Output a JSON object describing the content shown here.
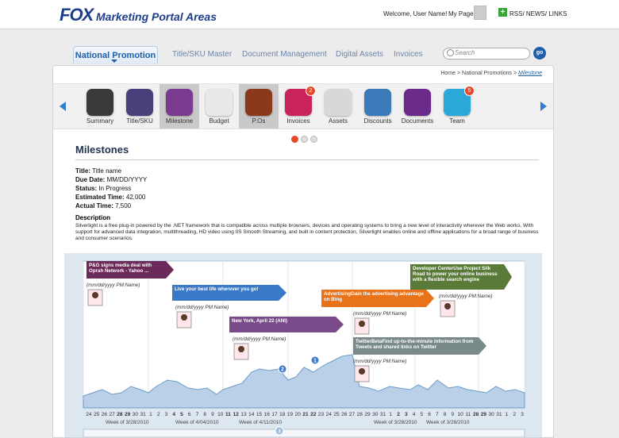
{
  "header": {
    "logo": "FOX",
    "portal_title": "Marketing Portal Areas",
    "welcome": "Welcome, User Name!",
    "my_page": "My Page",
    "rss": "RSS/ NEWS/ LINKS",
    "rss_symbol": "+"
  },
  "nav": {
    "tabs": [
      "National Promotion",
      "Title/SKU Master",
      "Document Management",
      "Digital Assets",
      "Invoices"
    ],
    "search_placeholder": "Search",
    "go": "go"
  },
  "breadcrumb": {
    "path": "Home > National Promotions > ",
    "current": "Milestone"
  },
  "modules": [
    {
      "label": "Summary",
      "color": "#3a3a3a",
      "badge": ""
    },
    {
      "label": "Title/SKU",
      "color": "#4a3f7a",
      "badge": ""
    },
    {
      "label": "Milestone",
      "color": "#7a3a8f",
      "badge": ""
    },
    {
      "label": "Budget",
      "color": "#e8e8e8",
      "badge": ""
    },
    {
      "label": "P.Os",
      "color": "#8a3a1a",
      "badge": ""
    },
    {
      "label": "Invoices",
      "color": "#c8245a",
      "badge": "2"
    },
    {
      "label": "Assets",
      "color": "#d8d8d8",
      "badge": ""
    },
    {
      "label": "Discounts",
      "color": "#3a7ab8",
      "badge": ""
    },
    {
      "label": "Documents",
      "color": "#6a2a8a",
      "badge": ""
    },
    {
      "label": "Team",
      "color": "#2aa8d8",
      "badge": "5"
    }
  ],
  "milestones": {
    "title": "Milestones",
    "fields": [
      {
        "label": "Title:",
        "value": "Title name"
      },
      {
        "label": "Due Date:",
        "value": "MM/DD/YYYY"
      },
      {
        "label": "Status:",
        "value": "In Progress"
      },
      {
        "label": "Estimated Time:",
        "value": "42,000"
      },
      {
        "label": "Actual Time:",
        "value": "7,500"
      }
    ],
    "description_title": "Description",
    "description": "Silverlight is a free plug-in powered by the .NET framework that is compatible across multiple browsers, devices and operating systems to bring a new level of interactivity wherever the Web works. With support for advanced data integration, multithreading, HD video using IIS Smooth Streaming, and built in content protection, Silverlight enables online and offline applications for a broad range of business and consumer scenarios."
  },
  "timeline": {
    "events": [
      {
        "text": "P&G signs media deal with Oprah Network - Yahoo ...",
        "date": "(mm/dd/yyyy PM:Name)",
        "color": "#6b2a5a"
      },
      {
        "text": "Live your best life wherever you go!",
        "date": "(mm/dd/yyyy PM:Name)",
        "color": "#3a78c8"
      },
      {
        "text": "New York, April 22 (ANI)",
        "date": "(mm/dd/yyyy PM:Name)",
        "color": "#7a4a8a"
      },
      {
        "text": "AdvertisingGain the advertising advantage on Bing",
        "date": "(mm/dd/yyyy PM:Name)",
        "color": "#e8731a"
      },
      {
        "text": "Developer CenterUse Project Silk Road to power your online business with a flexible search engine",
        "date": "(mm/dd/yyyy PM:Name)",
        "color": "#5a7a3a"
      },
      {
        "text": "TwitterBetaFind up-to-the-minute information from Tweets and shared links on Twitter",
        "date": "(mm/dd/yyyy PM:Name)",
        "color": "#7a8a8a"
      }
    ],
    "markers": [
      "2",
      "1"
    ],
    "days": [
      "24",
      "25",
      "26",
      "27",
      "28",
      "29",
      "30",
      "31",
      "1",
      "2",
      "3",
      "4",
      "5",
      "6",
      "7",
      "8",
      "9",
      "10",
      "11",
      "12",
      "13",
      "14",
      "15",
      "16",
      "17",
      "18",
      "19",
      "20",
      "21",
      "22",
      "23",
      "24",
      "25",
      "26",
      "27",
      "28",
      "29",
      "30",
      "31",
      "1",
      "2",
      "3",
      "4",
      "5",
      "6",
      "7",
      "8",
      "9",
      "10",
      "11",
      "28",
      "29",
      "30",
      "31",
      "1",
      "2",
      "3"
    ],
    "bold_days": [
      4,
      5,
      11,
      12,
      18,
      19,
      28,
      29,
      40,
      41,
      50,
      51
    ],
    "weeks": [
      "Week of 3/28/2010",
      "Week of 4/04/2010",
      "Week of 4/11/2010",
      "Week of 3/28/2010",
      "Week of 3/28/2010"
    ],
    "scroll_marker": "3"
  }
}
